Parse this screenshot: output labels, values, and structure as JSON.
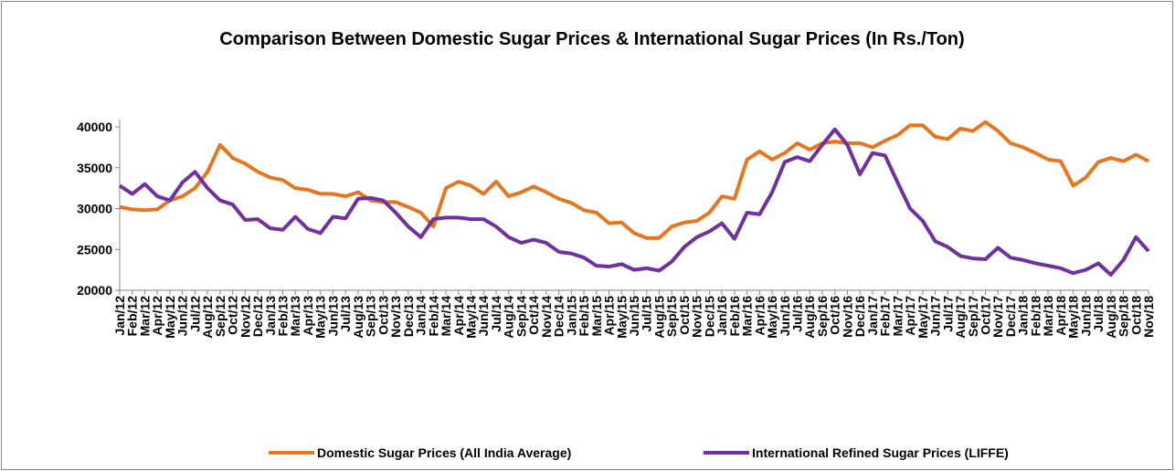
{
  "chart_data": {
    "type": "line",
    "title": "Comparison Between Domestic Sugar Prices & International Sugar Prices (In Rs./Ton)",
    "categories": [
      "Jan/12",
      "Feb/12",
      "Mar/12",
      "Apr/12",
      "May/12",
      "Jun/12",
      "Jul/12",
      "Aug/12",
      "Sep/12",
      "Oct/12",
      "Nov/12",
      "Dec/12",
      "Jan/13",
      "Feb/13",
      "Mar/13",
      "Apr/13",
      "May/13",
      "Jun/13",
      "Jul/13",
      "Aug/13",
      "Sep/13",
      "Oct/13",
      "Nov/13",
      "Dec/13",
      "Jan/14",
      "Feb/14",
      "Mar/14",
      "Apr/14",
      "May/14",
      "Jun/14",
      "Jul/14",
      "Aug/14",
      "Sep/14",
      "Oct/14",
      "Nov/14",
      "Dec/14",
      "Jan/15",
      "Feb/15",
      "Mar/15",
      "Apr/15",
      "May/15",
      "Jun/15",
      "Jul/15",
      "Aug/15",
      "Sep/15",
      "Oct/15",
      "Nov/15",
      "Dec/15",
      "Jan/16",
      "Feb/16",
      "Mar/16",
      "Apr/16",
      "May/16",
      "Jun/16",
      "Jul/16",
      "Aug/16",
      "Sep/16",
      "Oct/16",
      "Nov/16",
      "Dec/16",
      "Jan/17",
      "Feb/17",
      "Mar/17",
      "Apr/17",
      "May/17",
      "Jun/17",
      "Jul/17",
      "Aug/17",
      "Sep/17",
      "Oct/17",
      "Nov/17",
      "Dec/17",
      "Jan/18",
      "Feb/18",
      "Mar/18",
      "Apr/18",
      "May/18",
      "Jun/18",
      "Jul/18",
      "Aug/18",
      "Sep/18",
      "Oct/18",
      "Nov/18"
    ],
    "series": [
      {
        "name": "Domestic Sugar Prices (All India Average)",
        "color": "#e8761e",
        "values": [
          30200,
          29900,
          29800,
          29900,
          31000,
          31500,
          32500,
          34500,
          37800,
          36200,
          35500,
          34500,
          33800,
          33500,
          32500,
          32300,
          31800,
          31800,
          31500,
          32000,
          31000,
          30800,
          30800,
          30200,
          29500,
          27800,
          32500,
          33300,
          32800,
          31800,
          33300,
          31500,
          32000,
          32700,
          32000,
          31200,
          30700,
          29800,
          29500,
          28200,
          28300,
          27000,
          26400,
          26400,
          27800,
          28300,
          28500,
          29500,
          31500,
          31200,
          36000,
          37000,
          36000,
          36800,
          38000,
          37200,
          38000,
          38200,
          38000,
          38000,
          37500,
          38300,
          39000,
          40200,
          40200,
          38800,
          38500,
          39800,
          39500,
          40600,
          39500,
          38000,
          37500,
          36800,
          36000,
          35800,
          32800,
          33800,
          35700,
          36200,
          35800,
          36600,
          35800
        ]
      },
      {
        "name": "International Refined Sugar Prices (LIFFE)",
        "color": "#7030a0",
        "values": [
          32800,
          31800,
          33000,
          31500,
          31000,
          33200,
          34500,
          32500,
          31000,
          30500,
          28600,
          28700,
          27600,
          27400,
          29000,
          27500,
          27000,
          29000,
          28800,
          31200,
          31300,
          31000,
          29500,
          27800,
          26500,
          28700,
          28900,
          28900,
          28700,
          28700,
          27800,
          26500,
          25800,
          26200,
          25800,
          24700,
          24500,
          24000,
          23000,
          22900,
          23200,
          22500,
          22700,
          22400,
          23500,
          25300,
          26500,
          27200,
          28200,
          26300,
          29500,
          29300,
          32000,
          35700,
          36300,
          35800,
          37800,
          39700,
          37800,
          34200,
          36800,
          36500,
          33200,
          30000,
          28500,
          26000,
          25300,
          24200,
          23900,
          23800,
          25200,
          24000,
          23700,
          23300,
          23000,
          22700,
          22100,
          22500,
          23300,
          21900,
          23700,
          26500,
          24800
        ]
      }
    ],
    "ylim": [
      20000,
      40000
    ],
    "yticks": [
      20000,
      25000,
      30000,
      35000,
      40000
    ],
    "grid": false,
    "legend": "bottom"
  }
}
